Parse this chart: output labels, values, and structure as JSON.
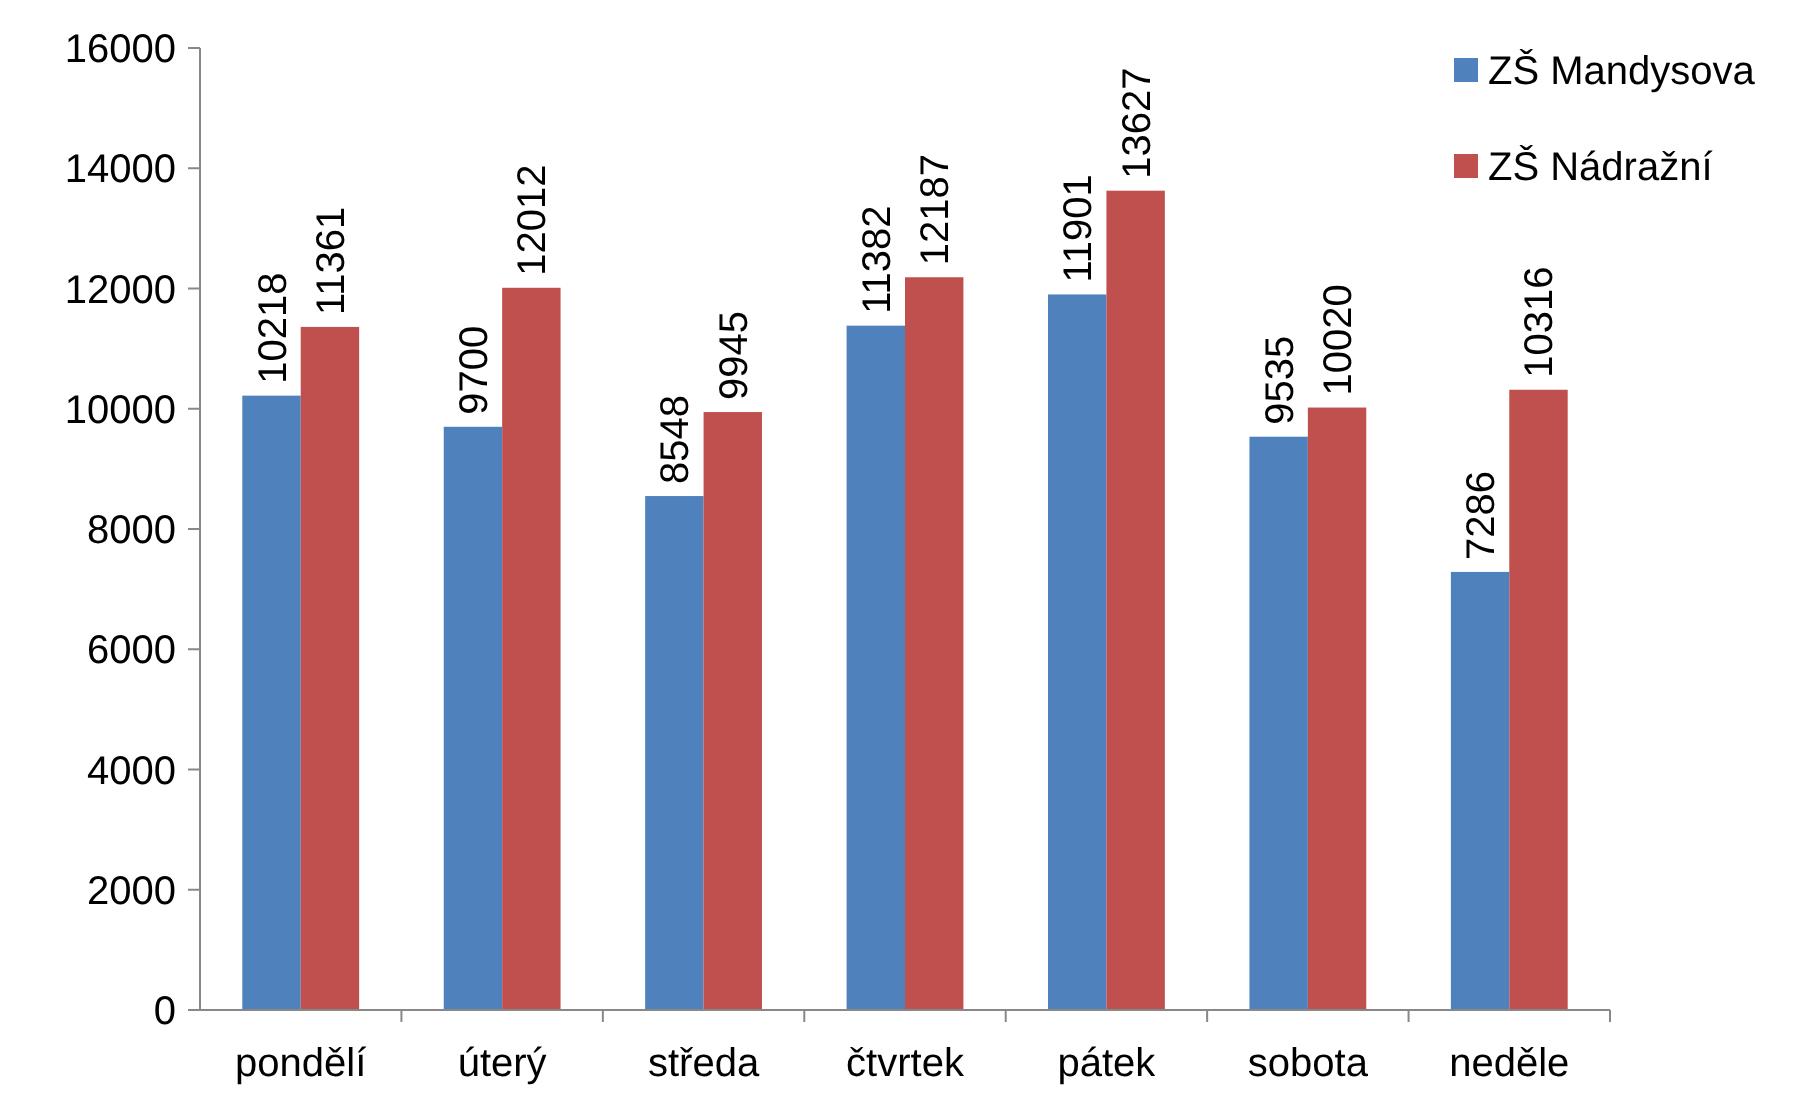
{
  "chart_data": {
    "type": "bar",
    "categories": [
      "pondělí",
      "úterý",
      "středa",
      "čtvrtek",
      "pátek",
      "sobota",
      "neděle"
    ],
    "series": [
      {
        "name": "ZŠ Mandysova",
        "color": "#4f81bd",
        "values": [
          10218,
          9700,
          8548,
          11382,
          11901,
          9535,
          7286
        ]
      },
      {
        "name": "ZŠ Nádražní",
        "color": "#c0504d",
        "values": [
          11361,
          12012,
          9945,
          12187,
          13627,
          10020,
          10316
        ]
      }
    ],
    "ylim": [
      0,
      16000
    ],
    "yticks": [
      0,
      2000,
      4000,
      6000,
      8000,
      10000,
      12000,
      14000,
      16000
    ],
    "grid": false,
    "legend": "top right",
    "data_labels": true
  }
}
